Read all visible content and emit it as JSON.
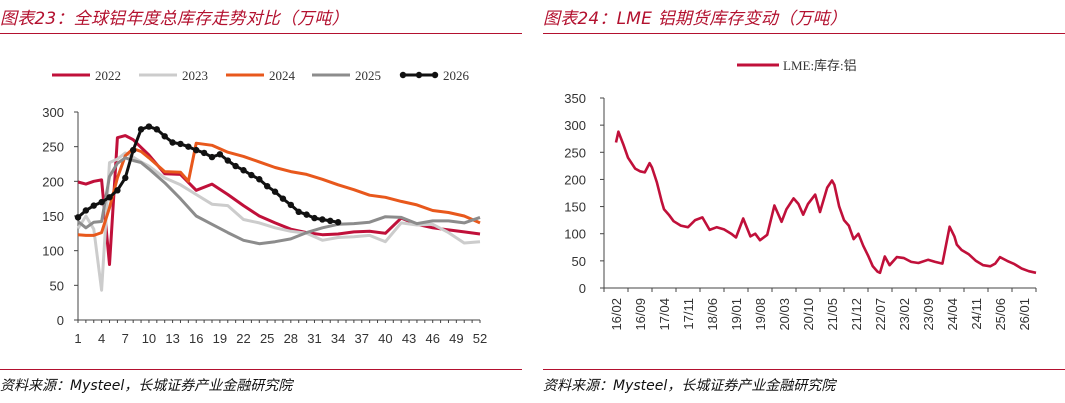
{
  "left": {
    "title": "图表23：全球铝年度总库存走势对比（万吨）",
    "source": "资料来源：Mysteel，长城证券产业金融研究院"
  },
  "right": {
    "title": "图表24：LME 铝期货库存变动（万吨）",
    "source": "资料来源：Mysteel，长城证券产业金融研究院"
  },
  "chart_data": [
    {
      "type": "line",
      "x_ticks": [
        "1",
        "4",
        "7",
        "10",
        "13",
        "16",
        "19",
        "22",
        "25",
        "28",
        "31",
        "34",
        "37",
        "40",
        "43",
        "46",
        "49",
        "52"
      ],
      "y_ticks": [
        "0",
        "50",
        "100",
        "150",
        "200",
        "250",
        "300"
      ],
      "ylim": [
        0,
        300
      ],
      "xlim": [
        1,
        52
      ],
      "legend_position": "top",
      "series": [
        {
          "name": "2022",
          "color": "#c0103a",
          "x": [
            1,
            2,
            3,
            4,
            5,
            6,
            7,
            8,
            9,
            10,
            12,
            14,
            16,
            18,
            20,
            22,
            24,
            26,
            28,
            30,
            32,
            34,
            36,
            38,
            40,
            42,
            44,
            46,
            48,
            50,
            52
          ],
          "values": [
            199,
            196,
            200,
            202,
            80,
            263,
            266,
            260,
            249,
            238,
            211,
            210,
            187,
            196,
            181,
            165,
            150,
            140,
            131,
            126,
            123,
            124,
            127,
            128,
            125,
            147,
            138,
            133,
            130,
            127,
            124
          ]
        },
        {
          "name": "2023",
          "color": "#cccccc",
          "x": [
            1,
            2,
            3,
            4,
            5,
            6,
            7,
            8,
            9,
            10,
            12,
            14,
            16,
            18,
            20,
            22,
            24,
            26,
            28,
            30,
            32,
            34,
            36,
            38,
            40,
            42,
            44,
            46,
            48,
            50,
            52
          ],
          "values": [
            132,
            150,
            131,
            43,
            227,
            232,
            241,
            235,
            228,
            222,
            205,
            195,
            181,
            167,
            165,
            145,
            140,
            133,
            128,
            125,
            115,
            119,
            120,
            122,
            113,
            140,
            137,
            138,
            126,
            111,
            113
          ]
        },
        {
          "name": "2024",
          "color": "#e8581c",
          "x": [
            1,
            2,
            3,
            4,
            5,
            6,
            7,
            8,
            9,
            10,
            12,
            14,
            15,
            16,
            18,
            20,
            22,
            24,
            26,
            28,
            30,
            32,
            34,
            36,
            38,
            40,
            42,
            44,
            46,
            48,
            50,
            52
          ],
          "values": [
            123,
            122,
            122,
            126,
            162,
            205,
            237,
            247,
            243,
            234,
            214,
            213,
            200,
            255,
            252,
            242,
            236,
            228,
            220,
            214,
            210,
            203,
            195,
            188,
            180,
            177,
            171,
            166,
            158,
            155,
            150,
            140
          ]
        },
        {
          "name": "2025",
          "color": "#8c8c8c",
          "x": [
            1,
            2,
            3,
            4,
            5,
            6,
            7,
            8,
            9,
            10,
            12,
            14,
            16,
            18,
            20,
            22,
            24,
            26,
            28,
            30,
            32,
            34,
            36,
            38,
            40,
            42,
            44,
            46,
            48,
            50,
            52
          ],
          "values": [
            142,
            133,
            141,
            142,
            207,
            226,
            234,
            230,
            227,
            218,
            198,
            175,
            150,
            138,
            126,
            115,
            110,
            113,
            117,
            126,
            133,
            138,
            139,
            141,
            149,
            148,
            139,
            143,
            143,
            140,
            148
          ]
        },
        {
          "name": "2026",
          "color": "#111111",
          "x": [
            1,
            2,
            3,
            4,
            5,
            6,
            7,
            8,
            9,
            10,
            11,
            12,
            13,
            14,
            15,
            16,
            17,
            18,
            19,
            20,
            21,
            22,
            23,
            24,
            25,
            26,
            27,
            28,
            29,
            30,
            31,
            32,
            33,
            34
          ],
          "values": [
            148,
            158,
            165,
            170,
            177,
            187,
            205,
            245,
            275,
            279,
            275,
            265,
            256,
            254,
            250,
            245,
            241,
            235,
            239,
            230,
            222,
            216,
            209,
            203,
            193,
            185,
            175,
            166,
            156,
            152,
            147,
            145,
            143,
            141
          ]
        }
      ]
    },
    {
      "type": "line",
      "legend_position": "top",
      "x_ticks": [
        "16/02",
        "16/09",
        "17/04",
        "17/11",
        "18/06",
        "19/01",
        "19/08",
        "20/03",
        "20/10",
        "21/05",
        "21/12",
        "22/07",
        "23/02",
        "23/09",
        "24/04",
        "24/11",
        "25/06",
        "26/01"
      ],
      "y_ticks": [
        "0",
        "50",
        "100",
        "150",
        "200",
        "250",
        "300",
        "350"
      ],
      "ylim": [
        0,
        350
      ],
      "series": [
        {
          "name": "LME:库存:铝",
          "color": "#c0103a",
          "x": [
            0.0,
            0.1,
            0.3,
            0.5,
            0.8,
            1.0,
            1.2,
            1.4,
            1.5,
            1.7,
            1.9,
            2.0,
            2.2,
            2.4,
            2.7,
            3.0,
            3.3,
            3.6,
            3.9,
            4.2,
            4.5,
            4.8,
            5.0,
            5.3,
            5.6,
            5.8,
            6.0,
            6.3,
            6.6,
            6.9,
            7.1,
            7.4,
            7.6,
            7.8,
            8.0,
            8.3,
            8.5,
            8.8,
            9.0,
            9.1,
            9.3,
            9.5,
            9.7,
            9.9,
            10.1,
            10.3,
            10.5,
            10.7,
            10.9,
            11.0,
            11.2,
            11.4,
            11.7,
            12.0,
            12.3,
            12.6,
            13.0,
            13.3,
            13.6,
            13.9,
            14.1,
            14.2,
            14.4,
            14.7,
            15.0,
            15.3,
            15.6,
            15.8,
            16.0,
            16.3,
            16.6,
            16.9,
            17.2,
            17.5
          ],
          "values": [
            268,
            288,
            265,
            240,
            220,
            215,
            213,
            230,
            222,
            195,
            160,
            145,
            135,
            123,
            115,
            112,
            125,
            130,
            107,
            112,
            108,
            100,
            93,
            128,
            95,
            100,
            88,
            98,
            152,
            122,
            145,
            165,
            155,
            135,
            155,
            172,
            140,
            185,
            198,
            190,
            150,
            125,
            115,
            90,
            100,
            78,
            60,
            40,
            30,
            28,
            58,
            42,
            57,
            55,
            48,
            46,
            52,
            48,
            45,
            113,
            95,
            80,
            70,
            62,
            50,
            42,
            40,
            45,
            57,
            50,
            44,
            36,
            31,
            28
          ]
        }
      ]
    }
  ]
}
